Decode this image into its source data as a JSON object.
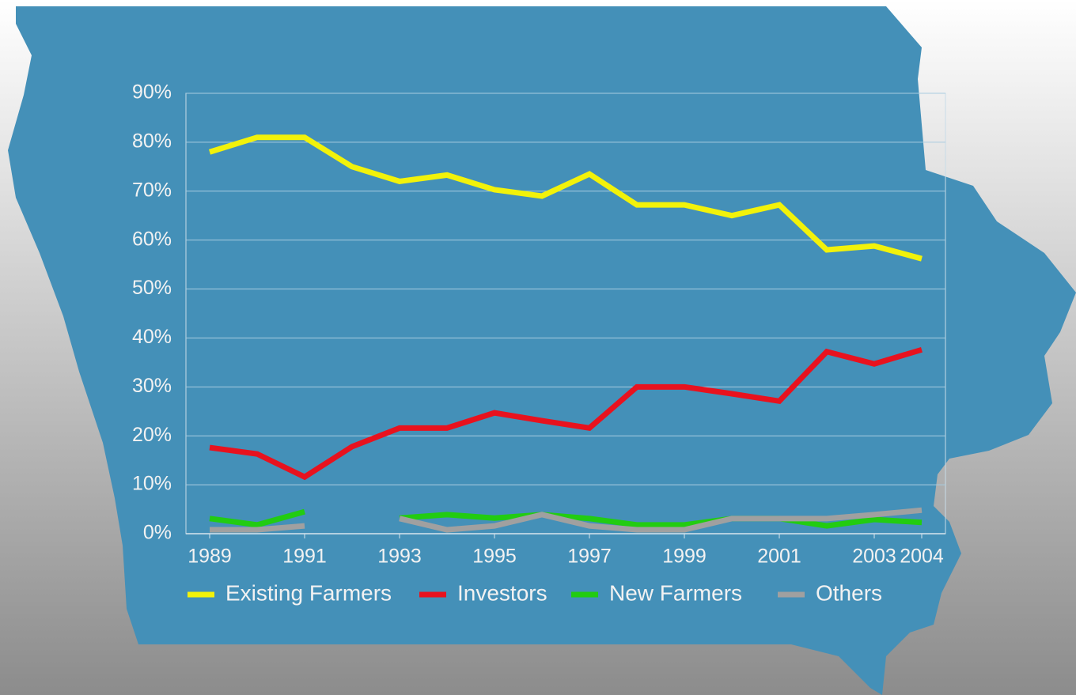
{
  "chart_data": {
    "type": "line",
    "x": [
      1989,
      1990,
      1991,
      1992,
      1993,
      1994,
      1995,
      1996,
      1997,
      1998,
      1999,
      2000,
      2001,
      2002,
      2003,
      2004
    ],
    "xlim": [
      1988.5,
      2004.5
    ],
    "xticks": [
      1989,
      1991,
      1993,
      1995,
      1997,
      1999,
      2001,
      2003,
      2004
    ],
    "ylim": [
      0,
      90
    ],
    "yticks": [
      {
        "value": 0,
        "label": "0%"
      },
      {
        "value": 10,
        "label": "10%"
      },
      {
        "value": 20,
        "label": "20%"
      },
      {
        "value": 30,
        "label": "30%"
      },
      {
        "value": 40,
        "label": "40%"
      },
      {
        "value": 50,
        "label": "50%"
      },
      {
        "value": 60,
        "label": "60%"
      },
      {
        "value": 70,
        "label": "70%"
      },
      {
        "value": 80,
        "label": "80%"
      },
      {
        "value": 90,
        "label": "90%"
      }
    ],
    "grid": true,
    "legend": "bottom",
    "series": [
      {
        "name": "Existing Farmers",
        "color": "#f2f20a",
        "values": [
          78,
          81,
          81,
          75,
          72,
          73.3,
          70.3,
          69,
          73.5,
          67.2,
          67.2,
          65,
          67.2,
          58,
          58.8,
          56.2
        ]
      },
      {
        "name": "Investors",
        "color": "#e8121e",
        "values": [
          17.6,
          16.3,
          11.6,
          17.8,
          21.6,
          21.6,
          24.7,
          23.1,
          21.6,
          30,
          30,
          28.6,
          27.1,
          37.2,
          34.7,
          37.6
        ]
      },
      {
        "name": "New Farmers",
        "color": "#22cc11",
        "values": [
          3.1,
          1.8,
          4.5,
          null,
          3.2,
          3.9,
          3.2,
          3.9,
          3.1,
          1.8,
          1.8,
          3.1,
          3.1,
          1.6,
          2.9,
          2.3
        ]
      },
      {
        "name": "Others",
        "color": "#a0a0a0",
        "values": [
          0.8,
          0.8,
          1.6,
          null,
          3.1,
          0.8,
          1.6,
          3.9,
          1.6,
          0.8,
          0.8,
          3.1,
          3.1,
          3.1,
          3.9,
          4.8
        ]
      }
    ]
  }
}
